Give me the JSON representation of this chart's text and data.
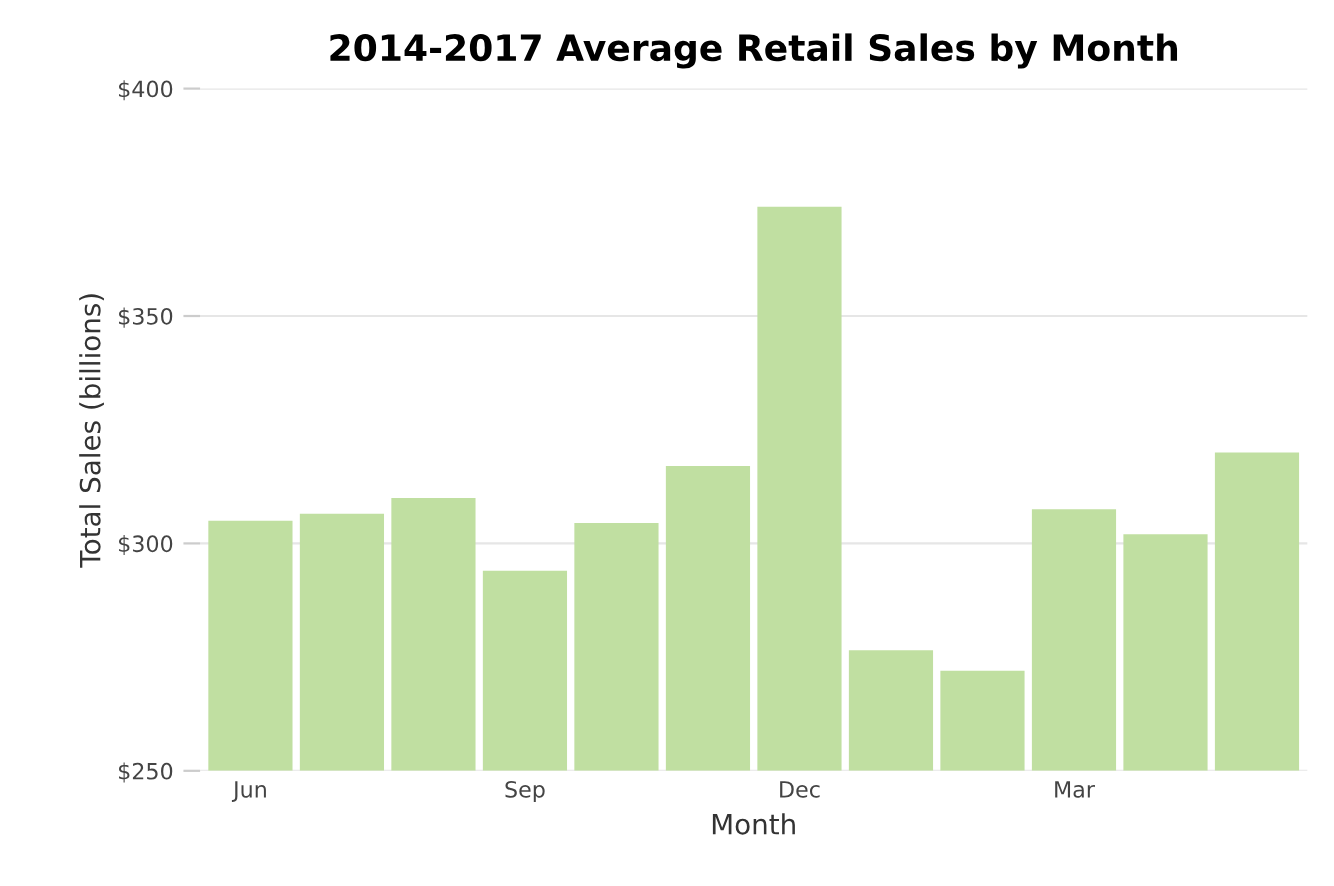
{
  "chart_data": {
    "type": "bar",
    "title": "2014-2017 Average Retail Sales by Month",
    "xlabel": "Month",
    "ylabel": "Total Sales (billions)",
    "categories": [
      "Jun",
      null,
      null,
      "Sep",
      null,
      null,
      "Dec",
      null,
      null,
      "Mar",
      null,
      null
    ],
    "values": [
      305,
      306.5,
      310,
      294,
      304.5,
      317,
      374,
      276.5,
      272,
      307.5,
      302,
      320
    ],
    "color": "#c0dfa1",
    "ylim": [
      250,
      400
    ],
    "yticks": [
      {
        "value": 250,
        "label": "$250"
      },
      {
        "value": 300,
        "label": "$300"
      },
      {
        "value": 350,
        "label": "$350"
      },
      {
        "value": 400,
        "label": "$400"
      }
    ],
    "grid": "y"
  }
}
